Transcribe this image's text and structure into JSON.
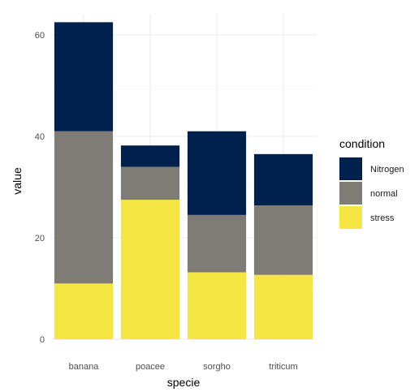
{
  "chart_data": {
    "type": "bar",
    "stacked": true,
    "categories": [
      "banana",
      "poacee",
      "sorgho",
      "triticum"
    ],
    "series": [
      {
        "name": "stress",
        "color": "#f4e543",
        "values": [
          11,
          27.5,
          13.2,
          12.7
        ]
      },
      {
        "name": "normal",
        "color": "#7f7c75",
        "values": [
          30,
          6.5,
          11.3,
          13.7
        ]
      },
      {
        "name": "Nitrogen",
        "color": "#00204d",
        "values": [
          21.5,
          4.2,
          16.5,
          10.1
        ]
      }
    ],
    "xlabel": "specie",
    "ylabel": "value",
    "ylim": [
      0,
      64
    ],
    "yticks": [
      0,
      20,
      40,
      60
    ],
    "grid": true,
    "legend": {
      "title": "condition",
      "position": "right",
      "entries": [
        "Nitrogen",
        "normal",
        "stress"
      ]
    }
  }
}
